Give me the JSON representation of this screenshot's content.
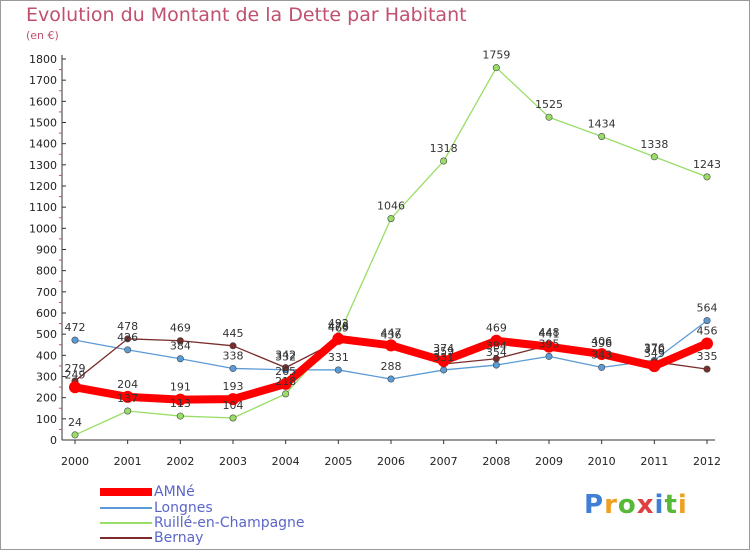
{
  "chart_data": {
    "type": "line",
    "title": "Evolution du Montant de la Dette par Habitant",
    "subtitle": "(en €)",
    "x": [
      "2000",
      "2001",
      "2002",
      "2003",
      "2004",
      "2005",
      "2006",
      "2007",
      "2008",
      "2009",
      "2010",
      "2011",
      "2012"
    ],
    "ylim": [
      0,
      1800
    ],
    "yticks": [
      0,
      100,
      200,
      300,
      400,
      500,
      600,
      700,
      800,
      900,
      1000,
      1100,
      1200,
      1300,
      1400,
      1500,
      1600,
      1700,
      1800
    ],
    "grid": false,
    "legend_position": "bottom-left",
    "series": [
      {
        "name": "AMNé",
        "color": "#ff0000",
        "values": [
          249,
          204,
          191,
          193,
          265,
          478,
          447,
          374,
          469,
          441,
          406,
          349,
          456
        ]
      },
      {
        "name": "Longnes",
        "color": "#5b9bd5",
        "values": [
          472,
          426,
          384,
          338,
          332,
          331,
          288,
          331,
          354,
          395,
          343,
          376,
          564
        ]
      },
      {
        "name": "Ruillé-en-Champagne",
        "color": "#99dd66",
        "values": [
          24,
          137,
          113,
          104,
          218,
          492,
          1046,
          1318,
          1759,
          1525,
          1434,
          1338,
          1243
        ]
      },
      {
        "name": "Bernay",
        "color": "#7b2d2d",
        "values": [
          279,
          478,
          469,
          445,
          342,
          469,
          436,
          359,
          384,
          448,
          396,
          370,
          335
        ]
      }
    ]
  },
  "logo": {
    "text": "Proxiti",
    "colors": [
      "#3f7fd6",
      "#f0a020",
      "#58b838",
      "#e04040",
      "#3f7fd6",
      "#58b838",
      "#f0a020"
    ]
  }
}
